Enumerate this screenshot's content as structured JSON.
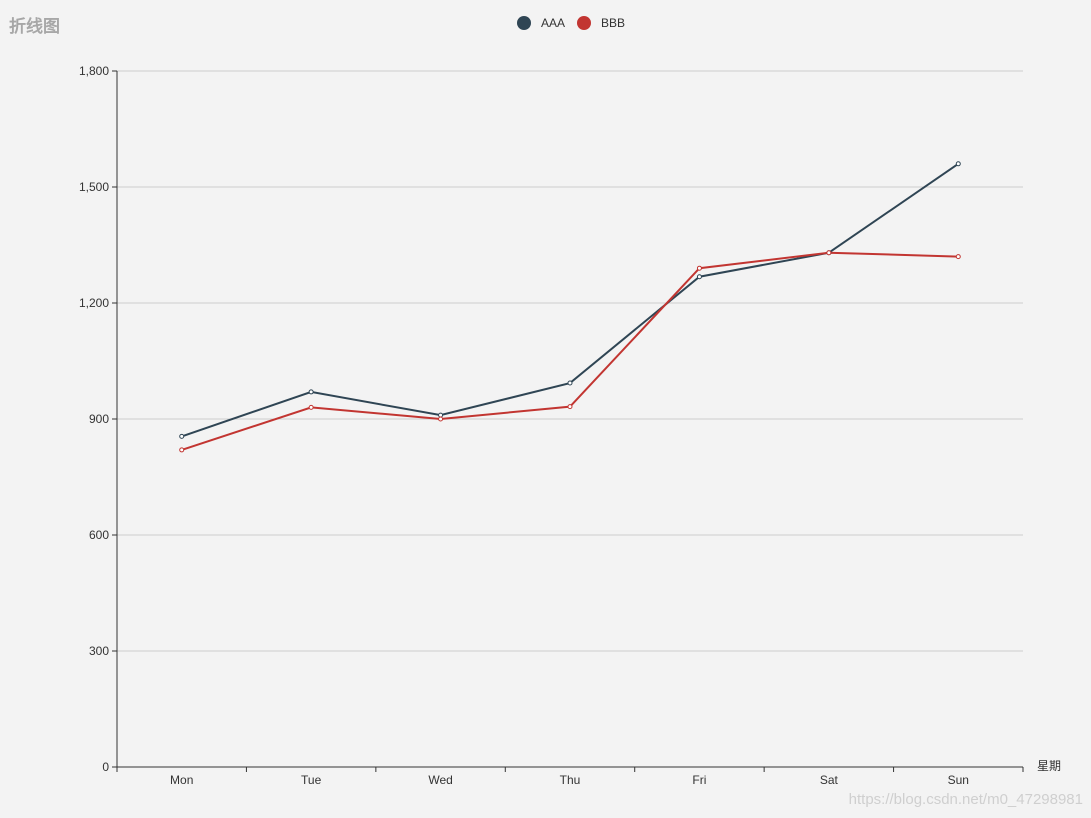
{
  "chart_data": {
    "type": "line",
    "title": "折线图",
    "xlabel": "星期",
    "ylabel": "",
    "categories": [
      "Mon",
      "Tue",
      "Wed",
      "Thu",
      "Fri",
      "Sat",
      "Sun"
    ],
    "ylim": [
      0,
      1800
    ],
    "yticks": [
      "0",
      "300",
      "600",
      "900",
      "1,200",
      "1,500",
      "1,800"
    ],
    "grid": true,
    "legend": "top-center",
    "series": [
      {
        "name": "AAA",
        "color": "#2f4554",
        "values": [
          855,
          970,
          910,
          993,
          1268,
          1330,
          1560
        ]
      },
      {
        "name": "BBB",
        "color": "#c23531",
        "values": [
          820,
          930,
          900,
          932,
          1290,
          1330,
          1320
        ]
      }
    ]
  },
  "watermark": "https://blog.csdn.net/m0_47298981"
}
